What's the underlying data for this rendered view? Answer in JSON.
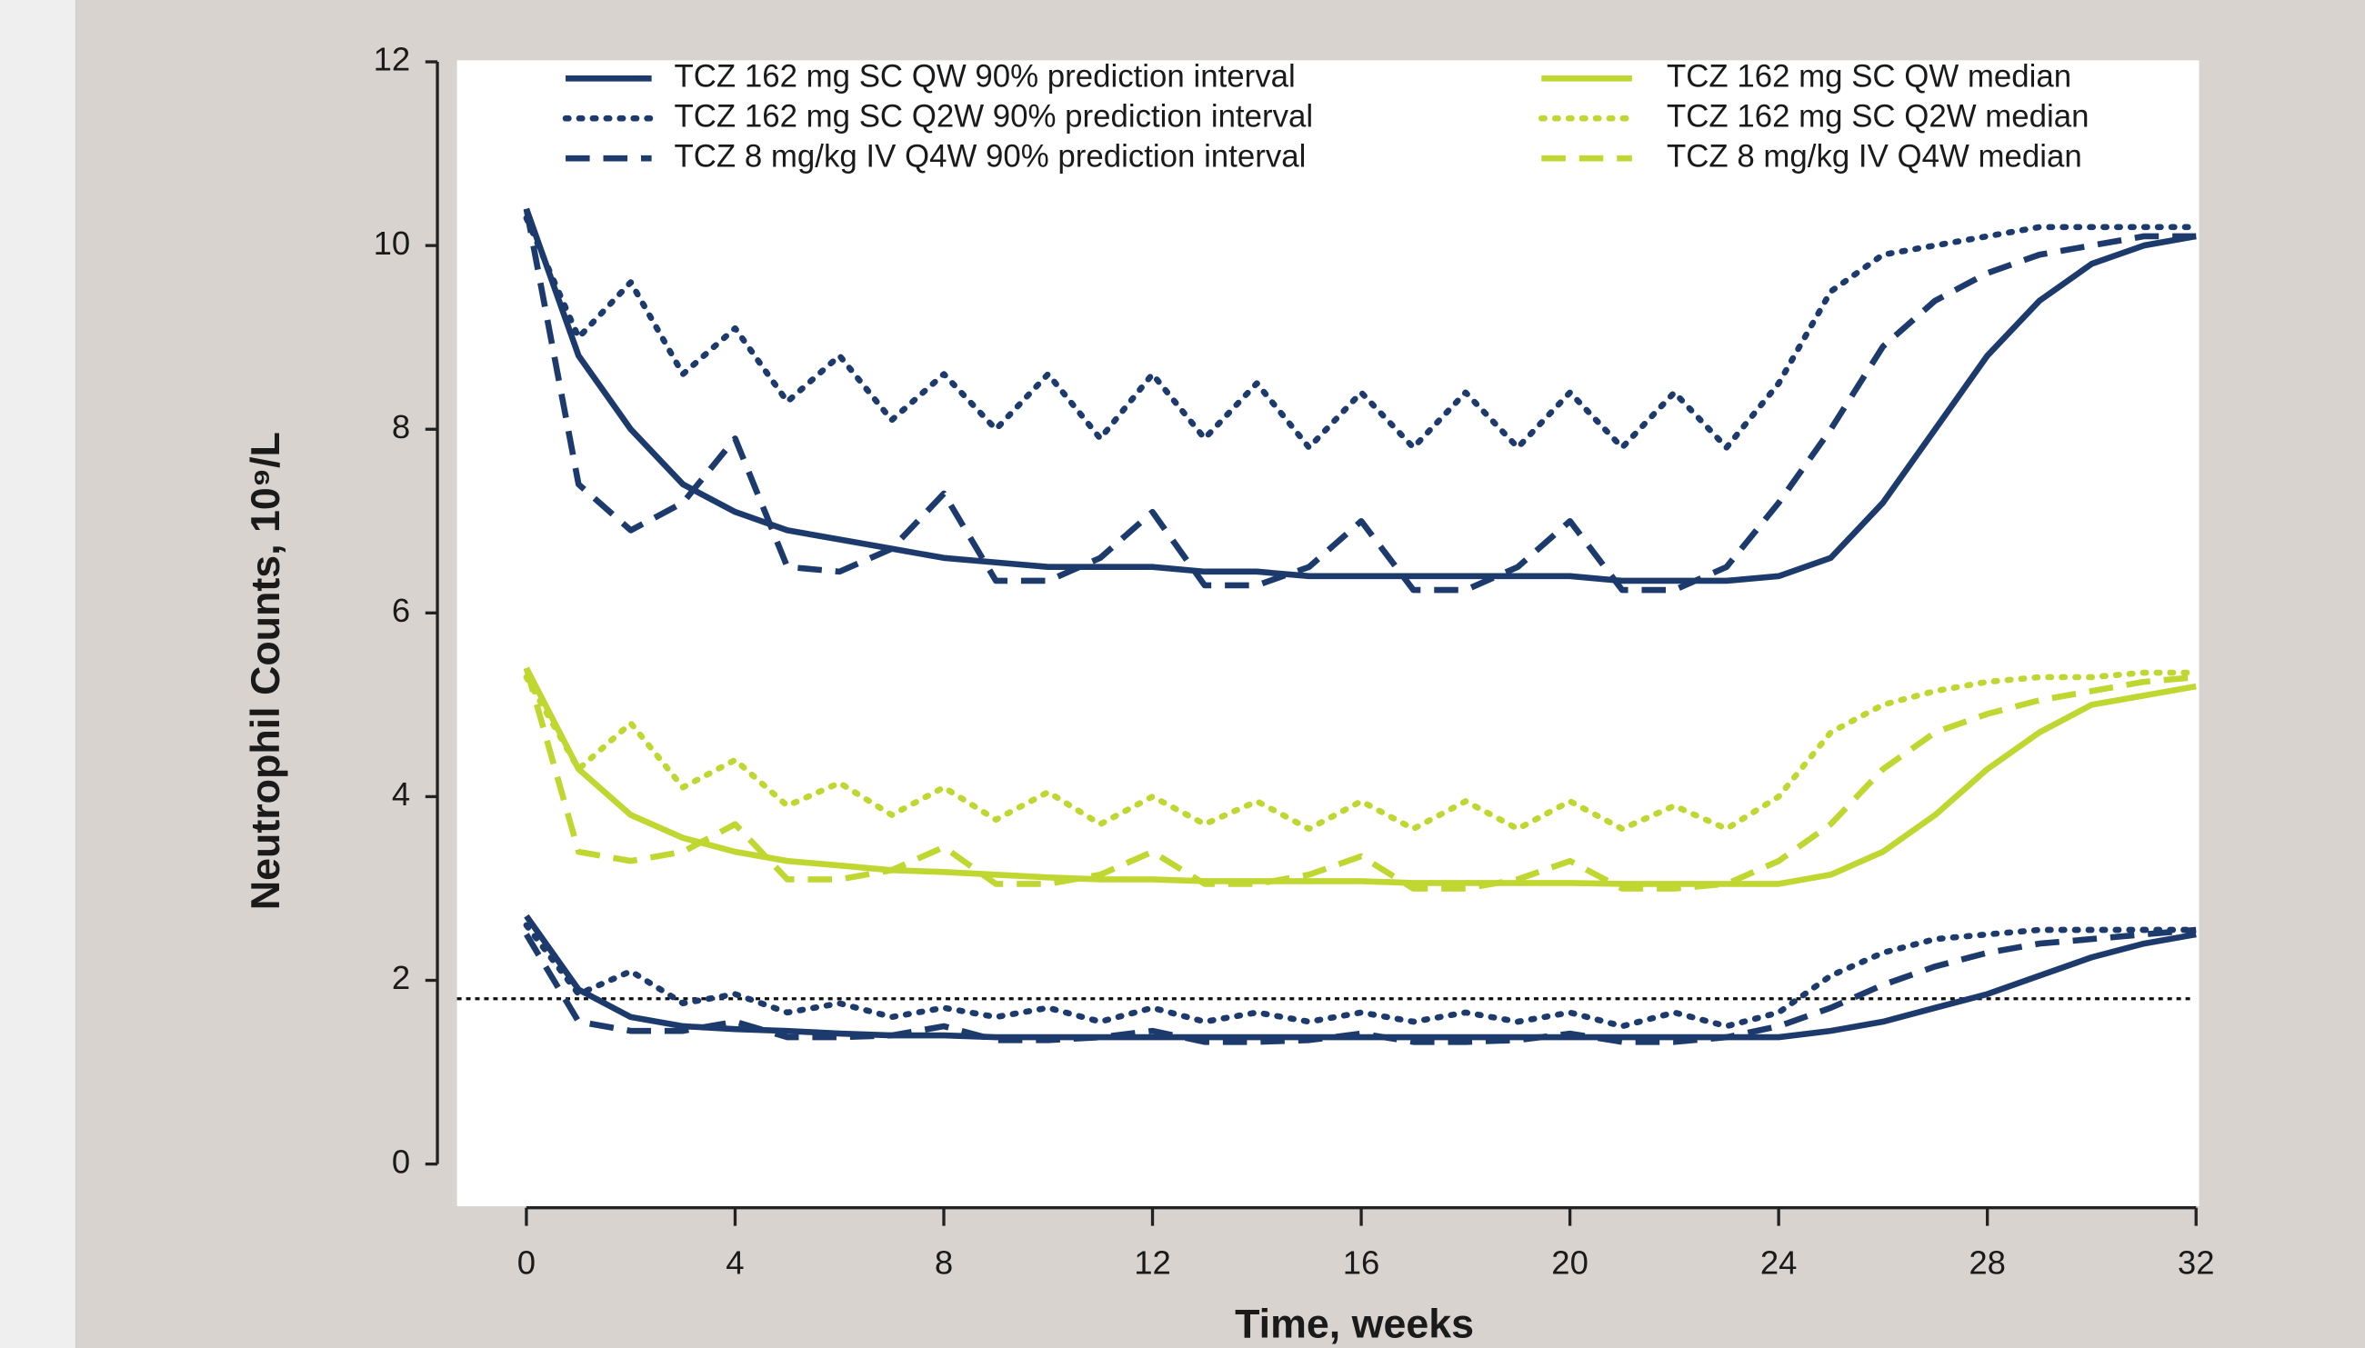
{
  "chart_data": {
    "type": "line",
    "title_y": "Neutrophil Counts, 10⁹/L",
    "title_x": "Time, weeks",
    "x": [
      0,
      1,
      2,
      3,
      4,
      5,
      6,
      7,
      8,
      9,
      10,
      11,
      12,
      13,
      14,
      15,
      16,
      17,
      18,
      19,
      20,
      21,
      22,
      23,
      24,
      25,
      26,
      27,
      28,
      29,
      30,
      31,
      32
    ],
    "xlim": [
      0,
      32
    ],
    "xticks": [
      0,
      4,
      8,
      12,
      16,
      20,
      24,
      28,
      32
    ],
    "ylim": [
      0,
      12
    ],
    "yticks": [
      0,
      2,
      4,
      6,
      8,
      10,
      12
    ],
    "reference_line": 1.8,
    "series": [
      {
        "name": "TCZ 162 mg SC QW 90% prediction interval",
        "color": "#1d3a6d",
        "dash": "solid",
        "upper": [
          10.4,
          8.8,
          8.0,
          7.4,
          7.1,
          6.9,
          6.8,
          6.7,
          6.6,
          6.55,
          6.5,
          6.5,
          6.5,
          6.45,
          6.45,
          6.4,
          6.4,
          6.4,
          6.4,
          6.4,
          6.4,
          6.35,
          6.35,
          6.35,
          6.4,
          6.6,
          7.2,
          8.0,
          8.8,
          9.4,
          9.8,
          10.0,
          10.1
        ],
        "lower": [
          2.7,
          1.9,
          1.6,
          1.5,
          1.47,
          1.45,
          1.42,
          1.4,
          1.4,
          1.38,
          1.38,
          1.38,
          1.38,
          1.38,
          1.38,
          1.38,
          1.38,
          1.38,
          1.38,
          1.38,
          1.38,
          1.38,
          1.38,
          1.38,
          1.38,
          1.45,
          1.55,
          1.7,
          1.85,
          2.05,
          2.25,
          2.4,
          2.5
        ]
      },
      {
        "name": "TCZ 162 mg SC Q2W 90% prediction interval",
        "color": "#1d3a6d",
        "dash": "dotted",
        "upper": [
          10.3,
          9.0,
          9.6,
          8.6,
          9.1,
          8.3,
          8.8,
          8.1,
          8.6,
          8.0,
          8.6,
          7.9,
          8.6,
          7.9,
          8.5,
          7.8,
          8.4,
          7.8,
          8.4,
          7.8,
          8.4,
          7.8,
          8.4,
          7.8,
          8.5,
          9.5,
          9.9,
          10.0,
          10.1,
          10.2,
          10.2,
          10.2,
          10.2
        ],
        "lower": [
          2.6,
          1.85,
          2.1,
          1.75,
          1.85,
          1.65,
          1.75,
          1.6,
          1.7,
          1.6,
          1.7,
          1.55,
          1.7,
          1.55,
          1.65,
          1.55,
          1.65,
          1.55,
          1.65,
          1.55,
          1.65,
          1.5,
          1.65,
          1.5,
          1.65,
          2.05,
          2.3,
          2.45,
          2.5,
          2.55,
          2.55,
          2.55,
          2.55
        ]
      },
      {
        "name": "TCZ 8 mg/kg IV Q4W 90% prediction interval",
        "color": "#1d3a6d",
        "dash": "dashed",
        "upper": [
          10.4,
          7.4,
          6.9,
          7.2,
          7.9,
          6.5,
          6.45,
          6.7,
          7.3,
          6.35,
          6.35,
          6.6,
          7.1,
          6.3,
          6.3,
          6.5,
          7.0,
          6.25,
          6.25,
          6.5,
          7.0,
          6.25,
          6.25,
          6.5,
          7.2,
          8.0,
          8.9,
          9.4,
          9.7,
          9.9,
          10.0,
          10.1,
          10.1
        ],
        "lower": [
          2.5,
          1.55,
          1.45,
          1.45,
          1.55,
          1.38,
          1.38,
          1.4,
          1.5,
          1.35,
          1.35,
          1.38,
          1.45,
          1.33,
          1.33,
          1.35,
          1.42,
          1.33,
          1.33,
          1.35,
          1.42,
          1.33,
          1.33,
          1.38,
          1.5,
          1.7,
          1.95,
          2.15,
          2.3,
          2.4,
          2.45,
          2.5,
          2.55
        ]
      },
      {
        "name": "TCZ 162 mg SC QW median",
        "color": "#bfd730",
        "dash": "solid",
        "values": [
          5.4,
          4.3,
          3.8,
          3.55,
          3.4,
          3.3,
          3.25,
          3.2,
          3.18,
          3.15,
          3.12,
          3.1,
          3.1,
          3.08,
          3.08,
          3.08,
          3.08,
          3.06,
          3.06,
          3.06,
          3.06,
          3.05,
          3.05,
          3.05,
          3.05,
          3.15,
          3.4,
          3.8,
          4.3,
          4.7,
          5.0,
          5.1,
          5.2
        ]
      },
      {
        "name": "TCZ 162 mg SC Q2W median",
        "color": "#bfd730",
        "dash": "dotted",
        "values": [
          5.3,
          4.3,
          4.8,
          4.1,
          4.4,
          3.9,
          4.15,
          3.8,
          4.1,
          3.75,
          4.05,
          3.7,
          4.0,
          3.7,
          3.95,
          3.65,
          3.95,
          3.65,
          3.95,
          3.65,
          3.95,
          3.65,
          3.9,
          3.65,
          4.0,
          4.7,
          5.0,
          5.15,
          5.25,
          5.3,
          5.3,
          5.35,
          5.35
        ]
      },
      {
        "name": "TCZ 8 mg/kg IV Q4W median",
        "color": "#bfd730",
        "dash": "dashed",
        "values": [
          5.4,
          3.4,
          3.3,
          3.4,
          3.7,
          3.1,
          3.1,
          3.2,
          3.45,
          3.05,
          3.05,
          3.15,
          3.4,
          3.05,
          3.05,
          3.15,
          3.35,
          3.0,
          3.0,
          3.1,
          3.3,
          3.0,
          3.0,
          3.05,
          3.3,
          3.7,
          4.3,
          4.7,
          4.9,
          5.05,
          5.15,
          5.25,
          5.3
        ]
      }
    ]
  }
}
